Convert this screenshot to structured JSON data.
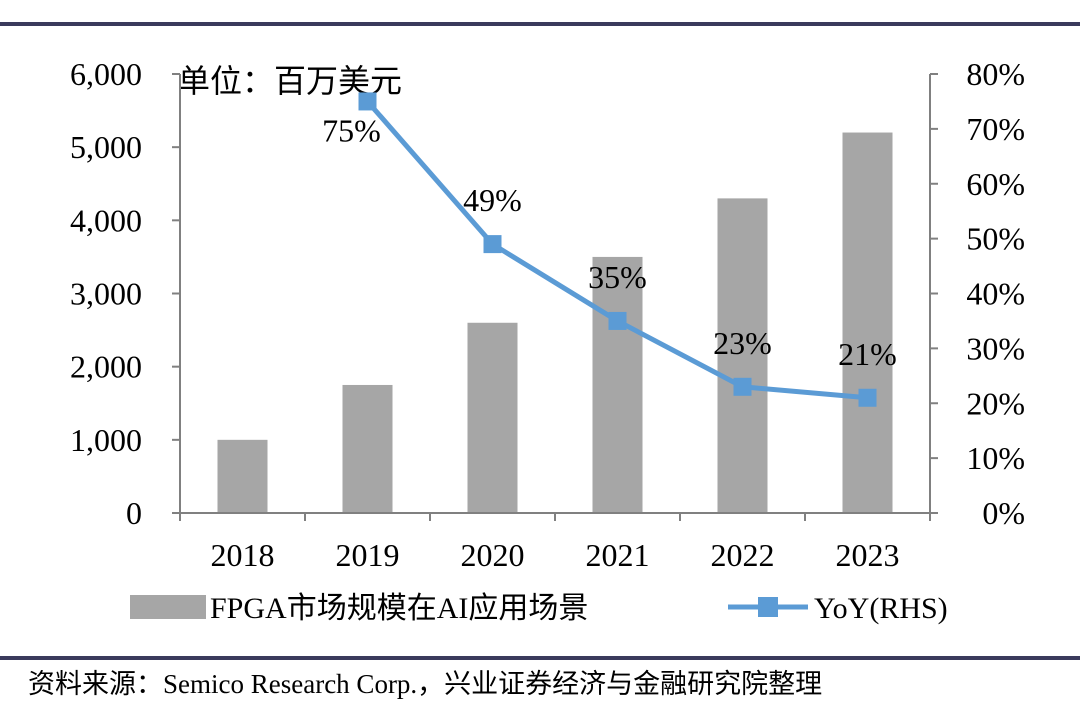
{
  "chart_data": {
    "type": "bar",
    "unit_label": "单位：百万美元",
    "categories": [
      "2018",
      "2019",
      "2020",
      "2021",
      "2022",
      "2023"
    ],
    "series": [
      {
        "name": "FPGA市场规模在AI应用场景",
        "type": "bar",
        "axis": "left",
        "color": "#a6a6a6",
        "values": [
          1000,
          1750,
          2600,
          3500,
          4300,
          5200
        ]
      },
      {
        "name": "YoY(RHS)",
        "type": "line",
        "axis": "right",
        "color": "#5b9bd5",
        "values": [
          null,
          75,
          49,
          35,
          23,
          21
        ],
        "labels": [
          "",
          "75%",
          "49%",
          "35%",
          "23%",
          "21%"
        ]
      }
    ],
    "y_left": {
      "range": [
        0,
        6000
      ],
      "ticks": [
        "0",
        "1,000",
        "2,000",
        "3,000",
        "4,000",
        "5,000",
        "6,000"
      ]
    },
    "y_right": {
      "range": [
        0,
        80
      ],
      "ticks": [
        "0%",
        "10%",
        "20%",
        "30%",
        "40%",
        "50%",
        "60%",
        "70%",
        "80%"
      ]
    },
    "grid": false,
    "legend_position": "bottom"
  },
  "source": "资料来源：Semico Research Corp.，兴业证券经济与金融研究院整理"
}
